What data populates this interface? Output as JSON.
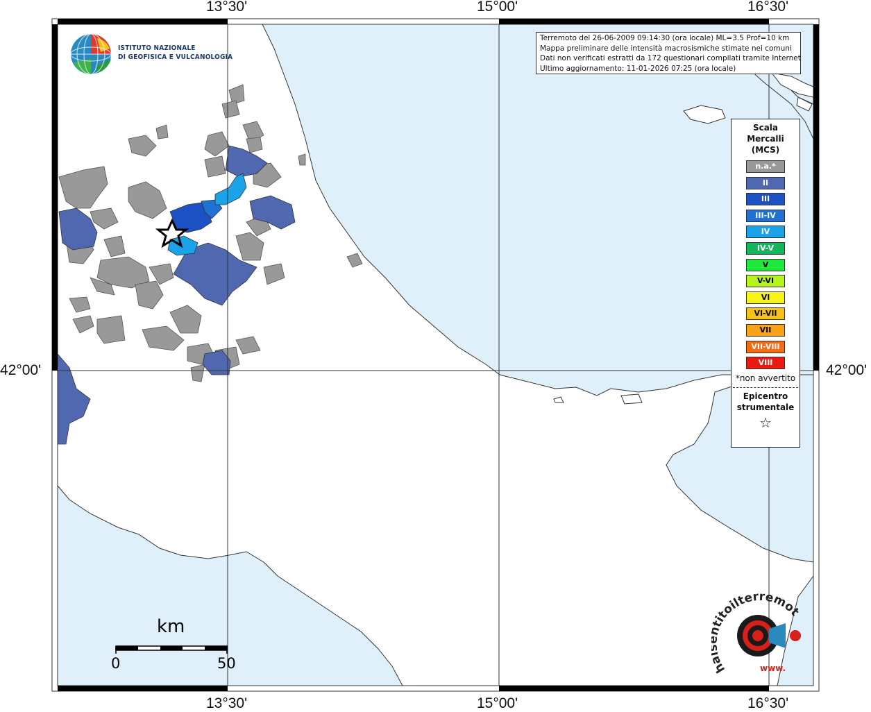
{
  "map": {
    "lon_labels": [
      "13°30'",
      "15°00'",
      "16°30'"
    ],
    "lat_labels": [
      "42°00'"
    ]
  },
  "info_box": {
    "line1": "Terremoto del 26-06-2009 09:14:30 (ora locale) ML=3.5 Prof=10 km",
    "line2": "Mappa preliminare delle intensità macrosismiche stimate nei comuni",
    "line3": "Dati non verificati estratti da 172 questionari compilati tramite Internet",
    "line4": "Ultimo aggiornamento: 11-01-2026 07:25 (ora locale)"
  },
  "institute": {
    "line1": "ISTITUTO NAZIONALE",
    "line2": "DI GEOFISICA E VULCANOLOGIA"
  },
  "legend": {
    "title1": "Scala",
    "title2": "Mercalli",
    "title3": "(MCS)",
    "classes": [
      {
        "label": "n.a.*",
        "color": "#999999"
      },
      {
        "label": "II",
        "color": "#4f68b0"
      },
      {
        "label": "III",
        "color": "#1c52c4"
      },
      {
        "label": "III-IV",
        "color": "#1f72d3"
      },
      {
        "label": "IV",
        "color": "#1aa3e8"
      },
      {
        "label": "IV-V",
        "color": "#15b55e"
      },
      {
        "label": "V",
        "color": "#1ee83c"
      },
      {
        "label": "V-VI",
        "color": "#b6f51c"
      },
      {
        "label": "VI",
        "color": "#f7f21a"
      },
      {
        "label": "VI-VII",
        "color": "#f5c21b"
      },
      {
        "label": "VII",
        "color": "#f7a218"
      },
      {
        "label": "VII-VIII",
        "color": "#f56b12"
      },
      {
        "label": "VIII",
        "color": "#ea1a12"
      }
    ],
    "note": "*non avvertito",
    "epicenter1": "Epicentro",
    "epicenter2": "strumentale",
    "epicenter_symbol": "☆"
  },
  "scale": {
    "unit": "km",
    "min": "0",
    "max": "50"
  },
  "badge": {
    "text": "haisentitoilterremoto.it",
    "www": "www."
  },
  "colors": {
    "sea": "#dff0fb",
    "land": "#ffffff",
    "na": "#999999",
    "ii": "#4f68b0",
    "iii": "#1c52c4",
    "iii_iv": "#1f72d3",
    "iv": "#1aa3e8"
  }
}
